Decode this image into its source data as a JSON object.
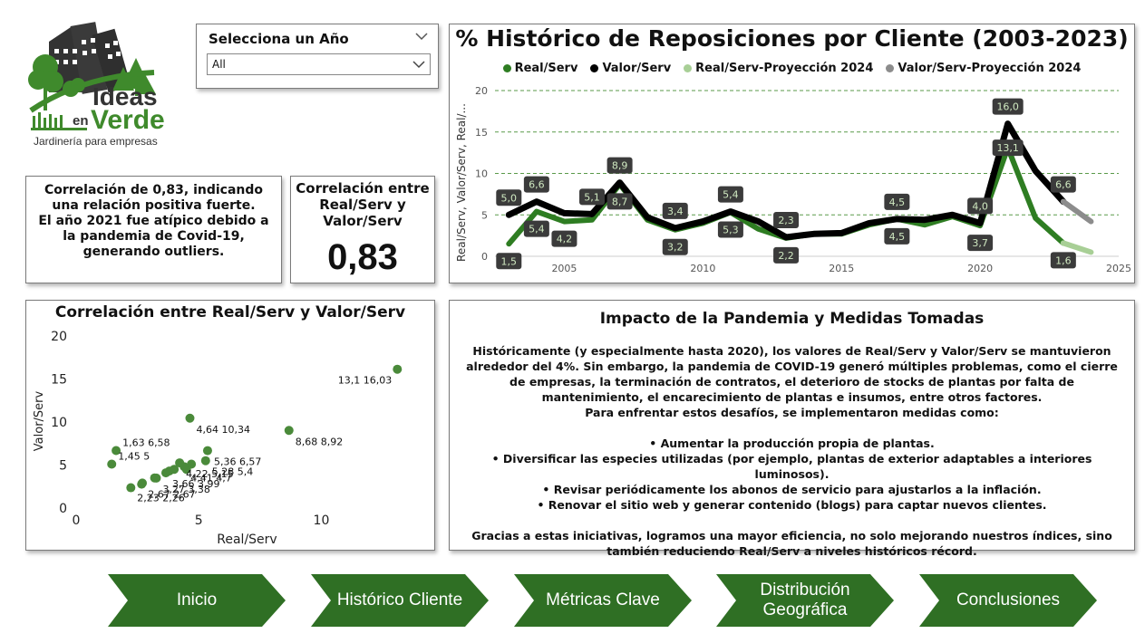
{
  "logo": {
    "line1": "Ideas",
    "line2_prefix": "en",
    "line2": "Verde",
    "tagline": "Jardinería para empresas"
  },
  "colors": {
    "green_dark": "#2e7d22",
    "green_light": "#a8cf96",
    "black": "#000000",
    "gray": "#8c8c8c",
    "label_bg": "#3b3b3b",
    "label_text": "#cfe8c0",
    "nav_green": "#2f6f24"
  },
  "slicer": {
    "title": "Selecciona un Año",
    "selected": "All"
  },
  "insight": {
    "text": "Correlación de 0,83, indicando una relación positiva fuerte.\nEl año 2021 fue atípico debido a la pandemia de Covid-19, generando outliers."
  },
  "kpi": {
    "label": "Correlación entre Real/Serv y Valor/Serv",
    "value": "0,83"
  },
  "impact": {
    "title": "Impacto de la Pandemia y Medidas Tomadas",
    "paragraph1": "Históricamente (y especialmente hasta 2020), los valores de Real/Serv y Valor/Serv se mantuvieron alrededor del 4%. Sin embargo, la pandemia de COVID-19 generó múltiples problemas, como el cierre de empresas, la terminación de contratos, el deterioro de stocks de plantas por falta de mantenimiento, el encarecimiento de plantas e insumos, entre otros factores.",
    "paragraph2": "Para enfrentar estos desafíos, se implementaron medidas como:",
    "bullets": [
      "• Aumentar la producción propia de plantas.",
      "• Diversificar las especies utilizadas (por ejemplo, plantas de exterior adaptables a interiores luminosos).",
      "• Revisar periódicamente los abonos de servicio para ajustarlos a la inflación.",
      "• Renovar el sitio web y generar contenido (blogs) para captar nuevos clientes."
    ],
    "paragraph3": "Gracias a estas iniciativas, logramos una mayor eficiencia, no solo mejorando nuestros índices, sino también reduciendo Real/Serv a niveles históricos récord."
  },
  "nav": [
    {
      "label": "Inicio"
    },
    {
      "label": "Histórico Cliente"
    },
    {
      "label": "Métricas Clave"
    },
    {
      "label": "Distribución Geográfica"
    },
    {
      "label": "Conclusiones"
    }
  ],
  "chart_data": [
    {
      "type": "line",
      "title": "% Histórico de Reposiciones por Cliente (2003-2023)",
      "ylabel": "Real/Serv, Valor/Serv, Real/...",
      "xlabel": "",
      "xlim": [
        2002.5,
        2025
      ],
      "ylim": [
        0,
        20
      ],
      "x_ticks": [
        2005,
        2010,
        2015,
        2020,
        2025
      ],
      "y_ticks": [
        0,
        5,
        10,
        15,
        20
      ],
      "grid": true,
      "legend": "top-center",
      "series": [
        {
          "name": "Real/Serv",
          "color": "#2e7d22",
          "points": [
            [
              2003,
              1.5
            ],
            [
              2004,
              5.4
            ],
            [
              2005,
              4.2
            ],
            [
              2006,
              4.4
            ],
            [
              2007,
              8.7
            ],
            [
              2008,
              4.4
            ],
            [
              2009,
              3.2
            ],
            [
              2010,
              4.0
            ],
            [
              2011,
              5.3
            ],
            [
              2012,
              3.3
            ],
            [
              2013,
              2.2
            ],
            [
              2014,
              2.7
            ],
            [
              2015,
              2.7
            ],
            [
              2016,
              3.8
            ],
            [
              2017,
              4.5
            ],
            [
              2018,
              3.8
            ],
            [
              2019,
              4.8
            ],
            [
              2020,
              3.7
            ],
            [
              2021,
              13.1
            ],
            [
              2022,
              4.6
            ],
            [
              2023,
              1.6
            ]
          ]
        },
        {
          "name": "Valor/Serv",
          "color": "#000000",
          "points": [
            [
              2003,
              5.0
            ],
            [
              2004,
              6.6
            ],
            [
              2005,
              5.2
            ],
            [
              2006,
              5.1
            ],
            [
              2007,
              8.9
            ],
            [
              2008,
              4.7
            ],
            [
              2009,
              3.4
            ],
            [
              2010,
              4.2
            ],
            [
              2011,
              5.4
            ],
            [
              2012,
              4.2
            ],
            [
              2013,
              2.3
            ],
            [
              2014,
              2.7
            ],
            [
              2015,
              2.8
            ],
            [
              2016,
              4.0
            ],
            [
              2017,
              4.5
            ],
            [
              2018,
              4.4
            ],
            [
              2019,
              5.0
            ],
            [
              2020,
              4.0
            ],
            [
              2021,
              16.0
            ],
            [
              2022,
              10.3
            ],
            [
              2023,
              6.6
            ]
          ]
        },
        {
          "name": "Real/Serv-Proyección 2024",
          "color": "#a8cf96",
          "points": [
            [
              2023,
              1.6
            ],
            [
              2024,
              0.5
            ]
          ]
        },
        {
          "name": "Valor/Serv-Proyección 2024",
          "color": "#8c8c8c",
          "points": [
            [
              2023,
              6.6
            ],
            [
              2024,
              4.2
            ]
          ]
        }
      ],
      "data_labels": [
        {
          "x": 2003,
          "y": 5.0,
          "text": "5,0",
          "pos": "above"
        },
        {
          "x": 2003,
          "y": 1.5,
          "text": "1,5",
          "pos": "below"
        },
        {
          "x": 2004,
          "y": 6.6,
          "text": "6,6",
          "pos": "above"
        },
        {
          "x": 2004,
          "y": 5.4,
          "text": "5,4",
          "pos": "below"
        },
        {
          "x": 2005,
          "y": 4.2,
          "text": "4,2",
          "pos": "below"
        },
        {
          "x": 2006,
          "y": 5.1,
          "text": "5,1",
          "pos": "above"
        },
        {
          "x": 2007,
          "y": 8.9,
          "text": "8,9",
          "pos": "above"
        },
        {
          "x": 2007,
          "y": 8.7,
          "text": "8,7",
          "pos": "below"
        },
        {
          "x": 2009,
          "y": 3.4,
          "text": "3,4",
          "pos": "above"
        },
        {
          "x": 2009,
          "y": 3.2,
          "text": "3,2",
          "pos": "below"
        },
        {
          "x": 2011,
          "y": 5.4,
          "text": "5,4",
          "pos": "above"
        },
        {
          "x": 2011,
          "y": 5.3,
          "text": "5,3",
          "pos": "below"
        },
        {
          "x": 2013,
          "y": 2.3,
          "text": "2,3",
          "pos": "above"
        },
        {
          "x": 2013,
          "y": 2.2,
          "text": "2,2",
          "pos": "below"
        },
        {
          "x": 2017,
          "y": 4.5,
          "text": "4,5",
          "pos": "above"
        },
        {
          "x": 2017,
          "y": 4.5,
          "text": "4,5",
          "pos": "below"
        },
        {
          "x": 2020,
          "y": 4.0,
          "text": "4,0",
          "pos": "above"
        },
        {
          "x": 2020,
          "y": 3.7,
          "text": "3,7",
          "pos": "below"
        },
        {
          "x": 2021,
          "y": 16.0,
          "text": "16,0",
          "pos": "above"
        },
        {
          "x": 2021,
          "y": 13.1,
          "text": "13,1",
          "pos": "center"
        },
        {
          "x": 2023,
          "y": 6.6,
          "text": "6,6",
          "pos": "above"
        },
        {
          "x": 2023,
          "y": 1.6,
          "text": "1,6",
          "pos": "below"
        }
      ]
    },
    {
      "type": "scatter",
      "title": "Correlación entre Real/Serv y Valor/Serv",
      "xlabel": "Real/Serv",
      "ylabel": "Valor/Serv",
      "xlim": [
        0,
        13.2
      ],
      "ylim": [
        0,
        20
      ],
      "x_ticks": [
        0,
        5,
        10
      ],
      "y_ticks": [
        0,
        5,
        10,
        15,
        20
      ],
      "grid": false,
      "color": "#4a8a3a",
      "points": [
        {
          "x": 13.1,
          "y": 16.03,
          "label": "13,1 16,03"
        },
        {
          "x": 4.64,
          "y": 10.34,
          "label": "4,64 10,34"
        },
        {
          "x": 8.68,
          "y": 8.92,
          "label": "8,68 8,92"
        },
        {
          "x": 5.36,
          "y": 6.57,
          "label": "5,36 6,57"
        },
        {
          "x": 1.63,
          "y": 6.58,
          "label": "1,63 6,58"
        },
        {
          "x": 4.22,
          "y": 5.15,
          "label": "4,22 5,15"
        },
        {
          "x": 5.28,
          "y": 5.4,
          "label": "5,28 5,4"
        },
        {
          "x": 1.45,
          "y": 5.0,
          "label": "1,45 5"
        },
        {
          "x": 3.27,
          "y": 3.38,
          "label": "3,27 3,38"
        },
        {
          "x": 4.41,
          "y": 4.7,
          "label": "4,41 4,7"
        },
        {
          "x": 3.66,
          "y": 3.99,
          "label": "3,66 3,99"
        },
        {
          "x": 2.23,
          "y": 2.26,
          "label": "2,23 2,26"
        },
        {
          "x": 2.67,
          "y": 2.67,
          "label": "2,67 2,67"
        },
        {
          "x": 3.2,
          "y": 3.4,
          "label": ""
        },
        {
          "x": 3.8,
          "y": 4.2,
          "label": ""
        },
        {
          "x": 4.5,
          "y": 4.4,
          "label": ""
        },
        {
          "x": 4.0,
          "y": 4.4,
          "label": ""
        },
        {
          "x": 2.7,
          "y": 2.8,
          "label": ""
        },
        {
          "x": 4.7,
          "y": 5.0,
          "label": ""
        }
      ]
    }
  ]
}
